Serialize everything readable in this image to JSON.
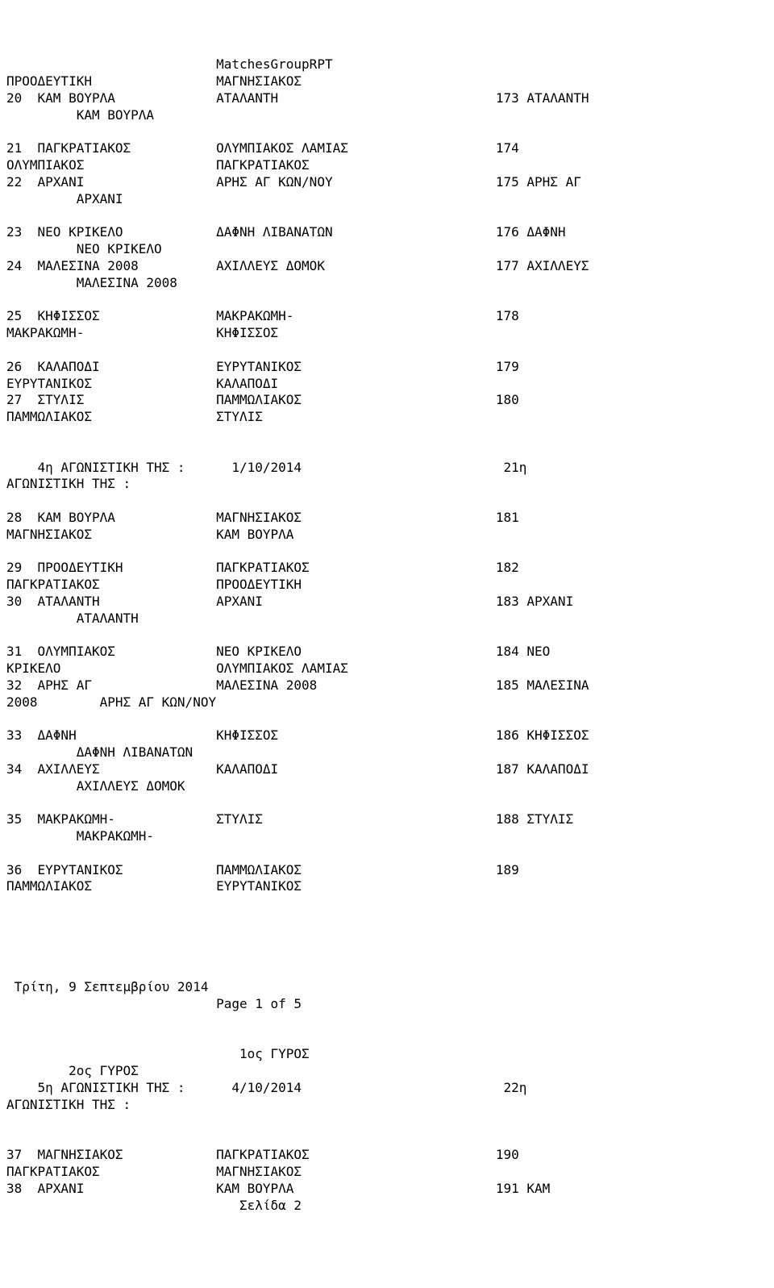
{
  "title": "MatchesGroupRPT",
  "lines": [
    {
      "c1": "",
      "c2": "MatchesGroupRPT",
      "c3": ""
    },
    {
      "c1": "ΠΡΟΟΔΕΥΤΙΚΗ",
      "c2": "ΜΑΓΝΗΣΙΑΚΟΣ",
      "c3": ""
    },
    {
      "c1": "20  ΚΑΜ ΒΟΥΡΛΑ",
      "c2": "ΑΤΑΛΑΝΤΗ",
      "c3": "173 ΑΤΑΛΑΝΤΗ"
    },
    {
      "c1": "         ΚΑΜ ΒΟΥΡΛΑ",
      "c2": "",
      "c3": ""
    },
    {
      "c1": "",
      "c2": "",
      "c3": ""
    },
    {
      "c1": "21  ΠΑΓΚΡΑΤΙΑΚΟΣ",
      "c2": "ΟΛΥΜΠΙΑΚΟΣ ΛΑΜΙΑΣ",
      "c3": "174"
    },
    {
      "c1": "ΟΛΥΜΠΙΑΚΟΣ",
      "c2": "ΠΑΓΚΡΑΤΙΑΚΟΣ",
      "c3": ""
    },
    {
      "c1": "22  ΑΡΧΑΝΙ",
      "c2": "ΑΡΗΣ ΑΓ ΚΩΝ/ΝΟΥ",
      "c3": "175 ΑΡΗΣ ΑΓ"
    },
    {
      "c1": "         ΑΡΧΑΝΙ",
      "c2": "",
      "c3": ""
    },
    {
      "c1": "",
      "c2": "",
      "c3": ""
    },
    {
      "c1": "23  ΝΕΟ ΚΡΙΚΕΛΟ",
      "c2": "ΔΑΦΝΗ ΛΙΒΑΝΑΤΩΝ",
      "c3": "176 ΔΑΦΝΗ"
    },
    {
      "c1": "         ΝΕΟ ΚΡΙΚΕΛΟ",
      "c2": "",
      "c3": ""
    },
    {
      "c1": "24  ΜΑΛΕΣΙΝΑ 2008",
      "c2": "ΑΧΙΛΛΕΥΣ ΔΟΜΟΚ",
      "c3": "177 ΑΧΙΛΛΕΥΣ"
    },
    {
      "c1": "         ΜΑΛΕΣΙΝΑ 2008",
      "c2": "",
      "c3": ""
    },
    {
      "c1": "",
      "c2": "",
      "c3": ""
    },
    {
      "c1": "25  ΚΗΦΙΣΣΟΣ",
      "c2": "ΜΑΚΡΑΚΩΜΗ-",
      "c3": "178"
    },
    {
      "c1": "ΜΑΚΡΑΚΩΜΗ-",
      "c2": "ΚΗΦΙΣΣΟΣ",
      "c3": ""
    },
    {
      "c1": "",
      "c2": "",
      "c3": ""
    },
    {
      "c1": "26  ΚΑΛΑΠΟΔΙ",
      "c2": "ΕΥΡΥΤΑΝΙΚΟΣ",
      "c3": "179"
    },
    {
      "c1": "ΕΥΡΥΤΑΝΙΚΟΣ",
      "c2": "ΚΑΛΑΠΟΔΙ",
      "c3": ""
    },
    {
      "c1": "27  ΣΤΥΛΙΣ",
      "c2": "ΠΑΜΜΩΛΙΑΚΟΣ",
      "c3": "180"
    },
    {
      "c1": "ΠΑΜΜΩΛΙΑΚΟΣ",
      "c2": "ΣΤΥΛΙΣ",
      "c3": ""
    },
    {
      "c1": "",
      "c2": "",
      "c3": ""
    },
    {
      "c1": "",
      "c2": "",
      "c3": ""
    },
    {
      "c1": "    4η ΑΓΩΝΙΣΤΙΚΗ ΤΗΣ :",
      "c2": "  1/10/2014",
      "c3": " 21η"
    },
    {
      "c1": "ΑΓΩΝΙΣΤΙΚΗ ΤΗΣ :",
      "c2": "",
      "c3": ""
    },
    {
      "c1": "",
      "c2": "",
      "c3": ""
    },
    {
      "c1": "28  ΚΑΜ ΒΟΥΡΛΑ",
      "c2": "ΜΑΓΝΗΣΙΑΚΟΣ",
      "c3": "181"
    },
    {
      "c1": "ΜΑΓΝΗΣΙΑΚΟΣ",
      "c2": "ΚΑΜ ΒΟΥΡΛΑ",
      "c3": ""
    },
    {
      "c1": "",
      "c2": "",
      "c3": ""
    },
    {
      "c1": "29  ΠΡΟΟΔΕΥΤΙΚΗ",
      "c2": "ΠΑΓΚΡΑΤΙΑΚΟΣ",
      "c3": "182"
    },
    {
      "c1": "ΠΑΓΚΡΑΤΙΑΚΟΣ",
      "c2": "ΠΡΟΟΔΕΥΤΙΚΗ",
      "c3": ""
    },
    {
      "c1": "30  ΑΤΑΛΑΝΤΗ",
      "c2": "ΑΡΧΑΝΙ",
      "c3": "183 ΑΡΧΑΝΙ"
    },
    {
      "c1": "         ΑΤΑΛΑΝΤΗ",
      "c2": "",
      "c3": ""
    },
    {
      "c1": "",
      "c2": "",
      "c3": ""
    },
    {
      "c1": "31  ΟΛΥΜΠΙΑΚΟΣ",
      "c2": "ΝΕΟ ΚΡΙΚΕΛΟ",
      "c3": "184 ΝΕΟ"
    },
    {
      "c1": "ΚΡΙΚΕΛΟ",
      "c2": "ΟΛΥΜΠΙΑΚΟΣ ΛΑΜΙΑΣ",
      "c3": ""
    },
    {
      "c1": "32  ΑΡΗΣ ΑΓ",
      "c2": "ΜΑΛΕΣΙΝΑ 2008",
      "c3": "185 ΜΑΛΕΣΙΝΑ"
    },
    {
      "c1": "2008        ΑΡΗΣ ΑΓ ΚΩΝ/ΝΟΥ",
      "c2": "",
      "c3": ""
    },
    {
      "c1": "",
      "c2": "",
      "c3": ""
    },
    {
      "c1": "33  ΔΑΦΝΗ",
      "c2": "ΚΗΦΙΣΣΟΣ",
      "c3": "186 ΚΗΦΙΣΣΟΣ"
    },
    {
      "c1": "         ΔΑΦΝΗ ΛΙΒΑΝΑΤΩΝ",
      "c2": "",
      "c3": ""
    },
    {
      "c1": "34  ΑΧΙΛΛΕΥΣ",
      "c2": "ΚΑΛΑΠΟΔΙ",
      "c3": "187 ΚΑΛΑΠΟΔΙ"
    },
    {
      "c1": "         ΑΧΙΛΛΕΥΣ ΔΟΜΟΚ",
      "c2": "",
      "c3": ""
    },
    {
      "c1": "",
      "c2": "",
      "c3": ""
    },
    {
      "c1": "35  ΜΑΚΡΑΚΩΜΗ-",
      "c2": "ΣΤΥΛΙΣ",
      "c3": "188 ΣΤΥΛΙΣ"
    },
    {
      "c1": "         ΜΑΚΡΑΚΩΜΗ-",
      "c2": "",
      "c3": ""
    },
    {
      "c1": "",
      "c2": "",
      "c3": ""
    },
    {
      "c1": "36  ΕΥΡΥΤΑΝΙΚΟΣ",
      "c2": "ΠΑΜΜΩΛΙΑΚΟΣ",
      "c3": "189"
    },
    {
      "c1": "ΠΑΜΜΩΛΙΑΚΟΣ",
      "c2": "ΕΥΡΥΤΑΝΙΚΟΣ",
      "c3": ""
    },
    {
      "c1": "",
      "c2": "",
      "c3": ""
    },
    {
      "c1": "",
      "c2": "",
      "c3": ""
    },
    {
      "c1": "",
      "c2": "",
      "c3": ""
    },
    {
      "c1": "",
      "c2": "",
      "c3": ""
    },
    {
      "c1": "",
      "c2": "",
      "c3": ""
    },
    {
      "c1": " Τρίτη, 9 Σεπτεμβρίου 2014",
      "c2": "",
      "c3": ""
    },
    {
      "c1": "",
      "c2": "Page 1 of 5",
      "c3": ""
    },
    {
      "c1": "",
      "c2": "",
      "c3": ""
    },
    {
      "c1": "",
      "c2": "",
      "c3": ""
    },
    {
      "c1": "",
      "c2": "   1ος ΓΥΡΟΣ",
      "c3": ""
    },
    {
      "c1": "        2ος ΓΥΡΟΣ",
      "c2": "",
      "c3": ""
    },
    {
      "c1": "    5η ΑΓΩΝΙΣΤΙΚΗ ΤΗΣ :",
      "c2": "  4/10/2014",
      "c3": " 22η"
    },
    {
      "c1": "ΑΓΩΝΙΣΤΙΚΗ ΤΗΣ :",
      "c2": "",
      "c3": ""
    },
    {
      "c1": "",
      "c2": "",
      "c3": ""
    },
    {
      "c1": "",
      "c2": "",
      "c3": ""
    },
    {
      "c1": "37  ΜΑΓΝΗΣΙΑΚΟΣ",
      "c2": "ΠΑΓΚΡΑΤΙΑΚΟΣ",
      "c3": "190"
    },
    {
      "c1": "ΠΑΓΚΡΑΤΙΑΚΟΣ",
      "c2": "ΜΑΓΝΗΣΙΑΚΟΣ",
      "c3": ""
    },
    {
      "c1": "38  ΑΡΧΑΝΙ",
      "c2": "ΚΑΜ ΒΟΥΡΛΑ",
      "c3": "191 ΚΑΜ"
    },
    {
      "c1": "",
      "c2": "   Σελίδα 2",
      "c3": ""
    }
  ],
  "layout": {
    "col1_width": 27,
    "col2_start": 27,
    "col2_width": 35,
    "col3_start": 62
  }
}
